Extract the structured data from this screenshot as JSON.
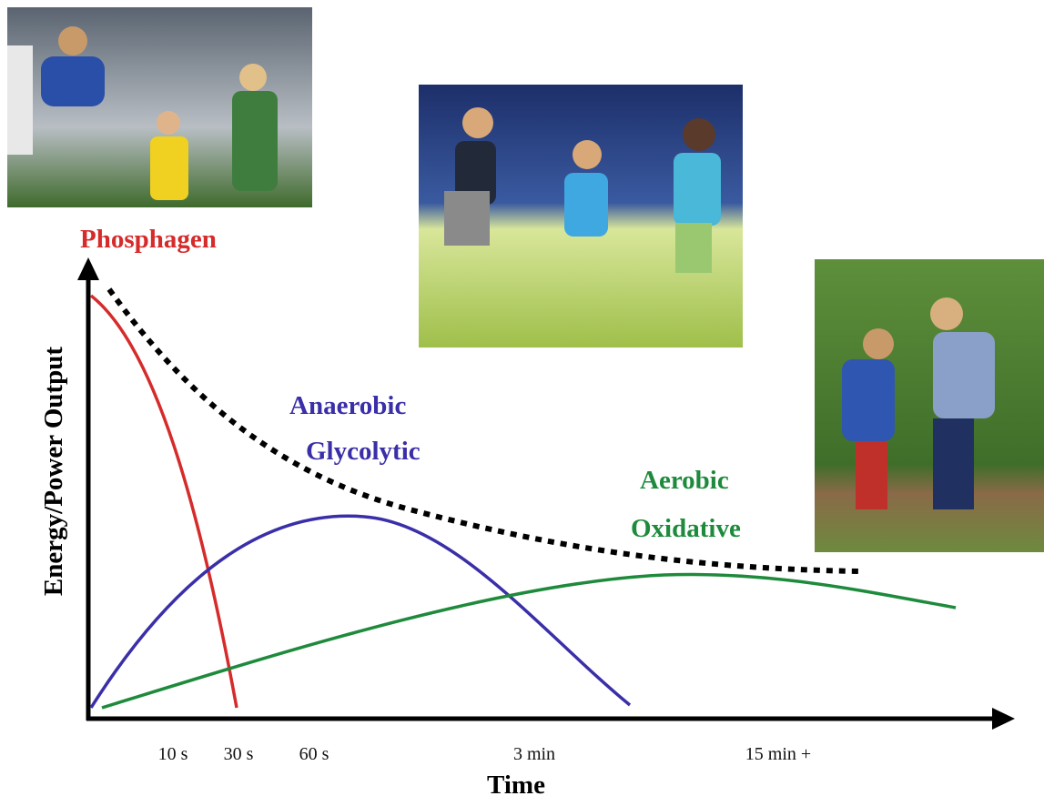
{
  "curves": [
    {
      "label_lines": [
        "Phosphagen"
      ]
    },
    {
      "label_lines": [
        "Anaerobic",
        "Glycolytic"
      ]
    },
    {
      "label_lines": [
        "Aerobic",
        "Oxidative"
      ]
    }
  ],
  "y_axis_label": "Energy/Power Output",
  "x_axis_label": "Time",
  "x_labels": [
    "10 s",
    "30 s",
    "60 s",
    "3 min",
    "15 min +"
  ]
}
